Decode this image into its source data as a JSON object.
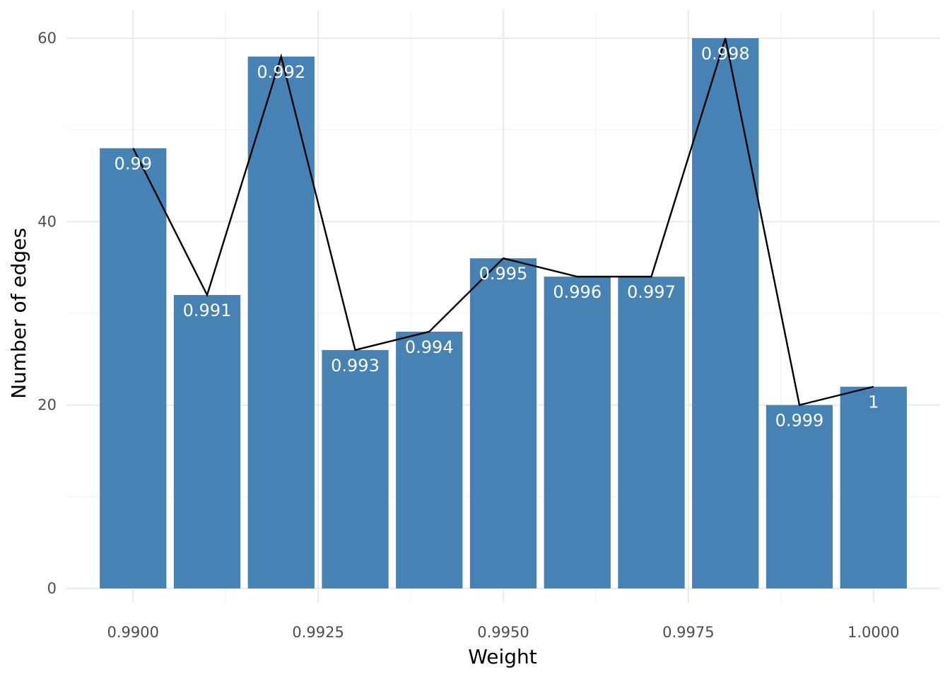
{
  "chart_data": {
    "type": "bar",
    "title": "",
    "xlabel": "Weight",
    "ylabel": "Number of edges",
    "x": [
      0.99,
      0.991,
      0.992,
      0.993,
      0.994,
      0.995,
      0.996,
      0.997,
      0.998,
      0.999,
      1.0
    ],
    "values": [
      48,
      32,
      58,
      26,
      28,
      36,
      34,
      34,
      60,
      20,
      22
    ],
    "bar_labels": [
      "0.99",
      "0.991",
      "0.992",
      "0.993",
      "0.994",
      "0.995",
      "0.996",
      "0.997",
      "0.998",
      "0.999",
      "1"
    ],
    "line_overlay": true,
    "xlim": [
      0.9891,
      1.0009
    ],
    "ylim": [
      0,
      60
    ],
    "x_ticks": [
      0.99,
      0.9925,
      0.995,
      0.9975,
      1.0
    ],
    "x_tick_labels": [
      "0.9900",
      "0.9925",
      "0.9950",
      "0.9975",
      "1.0000"
    ],
    "y_ticks": [
      0,
      20,
      40,
      60
    ],
    "y_tick_labels": [
      "0",
      "20",
      "40",
      "60"
    ],
    "grid": true,
    "legend": false,
    "colors": {
      "bar": "#4682b4",
      "line": "#000000",
      "bar_label": "#ffffff"
    }
  }
}
